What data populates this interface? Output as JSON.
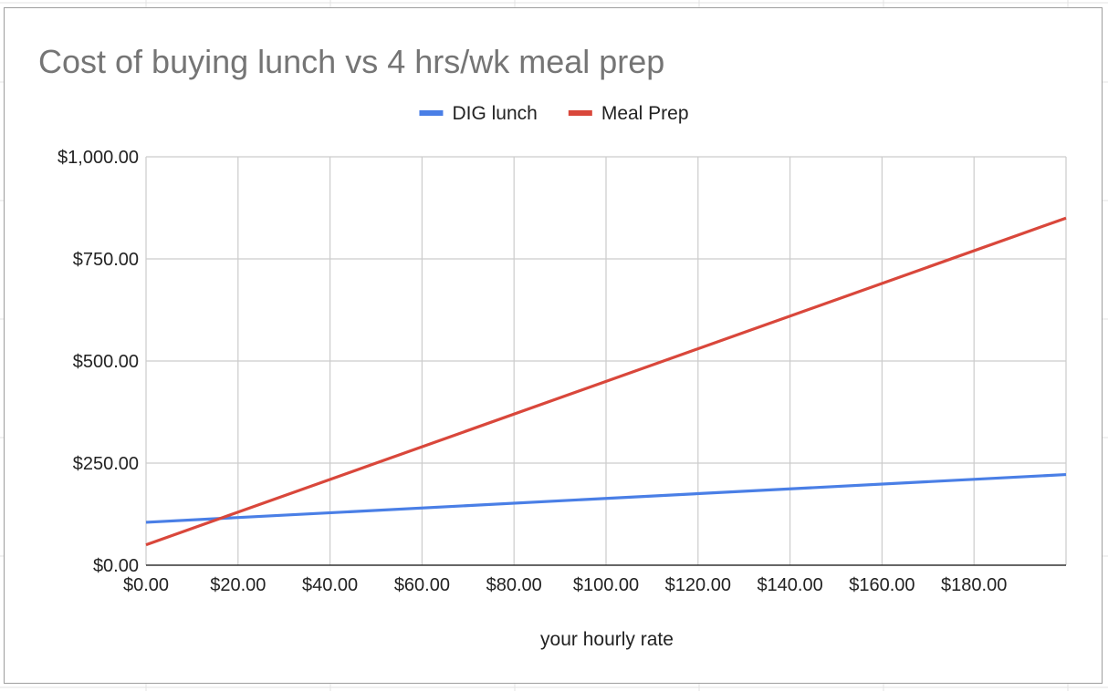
{
  "chart_data": {
    "type": "line",
    "title": "Cost of buying lunch vs 4 hrs/wk meal prep",
    "xlabel": "your hourly rate",
    "ylabel": "",
    "x_ticks": [
      "$0.00",
      "$20.00",
      "$40.00",
      "$60.00",
      "$80.00",
      "$100.00",
      "$120.00",
      "$140.00",
      "$160.00",
      "$180.00"
    ],
    "y_ticks": [
      "$0.00",
      "$250.00",
      "$500.00",
      "$750.00",
      "$1,000.00"
    ],
    "xlim": [
      0,
      200
    ],
    "ylim": [
      0,
      1000
    ],
    "x_tick_values": [
      0,
      20,
      40,
      60,
      80,
      100,
      120,
      140,
      160,
      180
    ],
    "y_tick_values": [
      0,
      250,
      500,
      750,
      1000
    ],
    "grid": true,
    "legend_position": "top-center",
    "series": [
      {
        "name": "DIG lunch",
        "color": "#4a7fe6",
        "x": [
          0,
          200
        ],
        "y": [
          105,
          222
        ]
      },
      {
        "name": "Meal Prep",
        "color": "#d9473b",
        "x": [
          0,
          200
        ],
        "y": [
          50,
          850
        ]
      }
    ]
  }
}
